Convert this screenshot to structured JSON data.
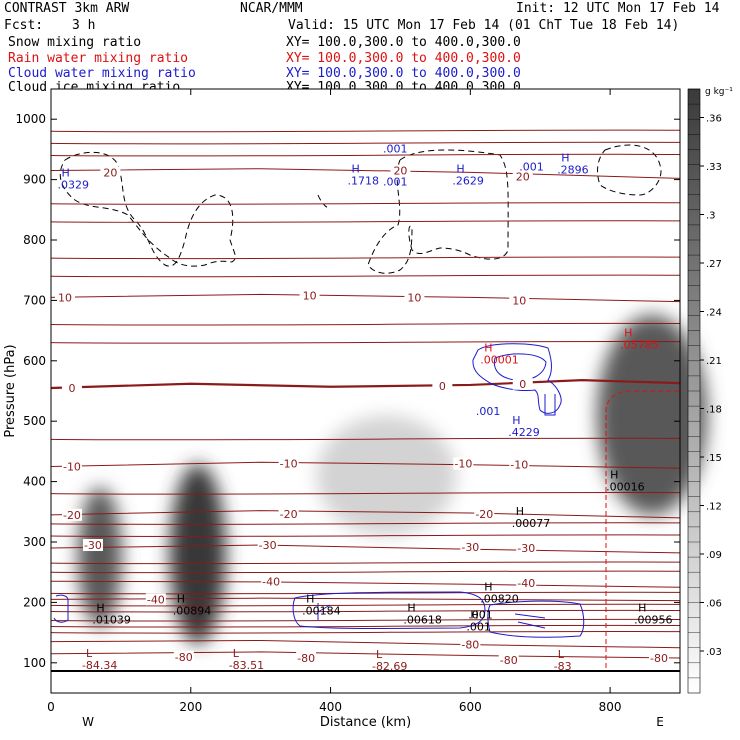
{
  "header": {
    "model": "CONTRAST   3km ARW",
    "center": "NCAR/MMM",
    "init": "Init: 12 UTC Mon 17 Feb 14",
    "fcst_label": "Fcst:",
    "fcst_value": "3 h",
    "valid": "Valid: 15 UTC Mon 17 Feb 14 (01 ChT Tue 18 Feb 14)"
  },
  "fields": [
    {
      "name": "Snow mixing ratio",
      "xy": "XY= 100.0,300.0 to 400.0,300.0",
      "color": "#000000"
    },
    {
      "name": "Rain water mixing ratio",
      "xy": "XY= 100.0,300.0 to 400.0,300.0",
      "color": "#dd1111"
    },
    {
      "name": "Cloud water mixing ratio",
      "xy": "XY= 100.0,300.0 to 400.0,300.0",
      "color": "#1c1ccc"
    },
    {
      "name": "Cloud ice mixing ratio",
      "xy": "XY= 100.0,300.0 to 400.0,300.0",
      "color": "#000000"
    }
  ],
  "colorbar": {
    "unit": "g kg⁻¹",
    "ticks": [
      ".03",
      ".06",
      ".09",
      ".12",
      ".15",
      ".18",
      ".21",
      ".24",
      ".27",
      ".3",
      ".33",
      ".36"
    ]
  },
  "chart_data": {
    "type": "contour",
    "xlabel": "Distance (km)",
    "ylabel": "Pressure (hPa)",
    "xlim": [
      0,
      900
    ],
    "ylim": [
      1050,
      50
    ],
    "xticks": [
      0,
      200,
      400,
      600,
      800
    ],
    "yticks": [
      100,
      200,
      300,
      400,
      500,
      600,
      700,
      800,
      900,
      1000
    ],
    "x_end_labels": {
      "left": "W",
      "right": "E"
    },
    "temperature_contours": [
      {
        "value": -80,
        "points": [
          [
            0,
            115
          ],
          [
            300,
            118
          ],
          [
            600,
            112
          ],
          [
            900,
            108
          ]
        ],
        "labels": [
          [
            190,
            110
          ],
          [
            365,
            108
          ],
          [
            655,
            105
          ],
          [
            870,
            108
          ]
        ]
      },
      {
        "value": -80,
        "points": [
          [
            0,
            135
          ],
          [
            300,
            137
          ],
          [
            600,
            130
          ],
          [
            900,
            125
          ]
        ],
        "labels": [
          [
            600,
            130
          ]
        ]
      },
      {
        "value": -40,
        "points": [
          [
            0,
            205
          ],
          [
            300,
            207
          ],
          [
            600,
            205
          ],
          [
            900,
            203
          ]
        ],
        "labels": [
          [
            150,
            205
          ]
        ]
      },
      {
        "value": -40,
        "points": [
          [
            0,
            235
          ],
          [
            300,
            234
          ],
          [
            600,
            230
          ],
          [
            900,
            225
          ]
        ],
        "labels": [
          [
            315,
            235
          ],
          [
            680,
            232
          ]
        ]
      },
      {
        "value": -30,
        "points": [
          [
            0,
            290
          ],
          [
            300,
            295
          ],
          [
            600,
            288
          ],
          [
            900,
            282
          ]
        ],
        "labels": [
          [
            60,
            295
          ],
          [
            310,
            295
          ],
          [
            600,
            292
          ],
          [
            680,
            290
          ]
        ]
      },
      {
        "value": -20,
        "points": [
          [
            0,
            345
          ],
          [
            300,
            352
          ],
          [
            600,
            348
          ],
          [
            900,
            340
          ]
        ],
        "labels": [
          [
            30,
            345
          ],
          [
            340,
            346
          ],
          [
            620,
            346
          ]
        ]
      },
      {
        "value": -10,
        "points": [
          [
            0,
            425
          ],
          [
            300,
            432
          ],
          [
            600,
            428
          ],
          [
            900,
            422
          ]
        ],
        "labels": [
          [
            30,
            425
          ],
          [
            340,
            430
          ],
          [
            590,
            430
          ],
          [
            670,
            428
          ]
        ]
      },
      {
        "value": 0,
        "points": [
          [
            0,
            555
          ],
          [
            200,
            562
          ],
          [
            400,
            557
          ],
          [
            600,
            560
          ],
          [
            760,
            568
          ],
          [
            900,
            563
          ]
        ],
        "labels": [
          [
            30,
            555
          ],
          [
            560,
            558
          ],
          [
            675,
            562
          ]
        ],
        "bold": true
      },
      {
        "value": 10,
        "points": [
          [
            0,
            705
          ],
          [
            300,
            710
          ],
          [
            600,
            705
          ],
          [
            900,
            698
          ]
        ],
        "labels": [
          [
            20,
            705
          ],
          [
            370,
            708
          ],
          [
            520,
            705
          ],
          [
            670,
            700
          ]
        ]
      },
      {
        "value": 20,
        "points": [
          [
            0,
            915
          ],
          [
            300,
            918
          ],
          [
            600,
            912
          ],
          [
            900,
            902
          ]
        ],
        "labels": [
          [
            85,
            912
          ],
          [
            500,
            915
          ],
          [
            675,
            905
          ]
        ]
      }
    ],
    "extrema": [
      {
        "kind": "L",
        "value": "-84.34",
        "x": 50,
        "p": 110
      },
      {
        "kind": "L",
        "value": "-83.51",
        "x": 260,
        "p": 110
      },
      {
        "kind": "L",
        "value": "-82.69",
        "x": 465,
        "p": 108
      },
      {
        "kind": "L",
        "value": "-83",
        "x": 725,
        "p": 108
      },
      {
        "kind": "H",
        "value": ".01039",
        "x": 65,
        "p": 185
      },
      {
        "kind": "H",
        "value": ".00894",
        "x": 180,
        "p": 200
      },
      {
        "kind": "H",
        "value": ".00184",
        "x": 365,
        "p": 200
      },
      {
        "kind": "H",
        "value": ".00618",
        "x": 510,
        "p": 185
      },
      {
        "kind": "H",
        "value": ".001",
        "x": 600,
        "p": 173
      },
      {
        "kind": "H",
        "value": ".00820",
        "x": 620,
        "p": 220
      },
      {
        "kind": "H",
        "value": ".00077",
        "x": 665,
        "p": 345
      },
      {
        "kind": "H",
        "value": ".00016",
        "x": 800,
        "p": 405
      },
      {
        "kind": "H",
        "value": ".00956",
        "x": 840,
        "p": 185
      },
      {
        "kind": "H",
        "value": ".4229",
        "x": 660,
        "p": 495,
        "color": "blue"
      },
      {
        "kind": "H",
        "value": ".00001",
        "x": 620,
        "p": 615,
        "color": "red"
      },
      {
        "kind": "H",
        "value": ".05785",
        "x": 820,
        "p": 640,
        "color": "red"
      },
      {
        "kind": "H",
        "value": ".0329",
        "x": 15,
        "p": 905,
        "color": "blue"
      },
      {
        "kind": "H",
        "value": ".1718",
        "x": 430,
        "p": 912,
        "color": "blue"
      },
      {
        "kind": "H",
        "value": ".2629",
        "x": 580,
        "p": 912,
        "color": "blue"
      },
      {
        "kind": "H",
        "value": ".2896",
        "x": 730,
        "p": 930,
        "color": "blue"
      }
    ],
    "snow_shading": [
      {
        "x": 70,
        "p": 275,
        "rx": 22,
        "rp": 70,
        "value": 0.3
      },
      {
        "x": 210,
        "p": 280,
        "rx": 28,
        "rp": 90,
        "value": 0.36
      },
      {
        "x": 480,
        "p": 410,
        "rx": 70,
        "rp": 60,
        "value": 0.08
      },
      {
        "x": 860,
        "p": 510,
        "rx": 55,
        "rp": 100,
        "value": 0.3
      }
    ],
    "contour_labels_other": [
      {
        "text": ".001",
        "x": 597,
        "p": 173,
        "color": "black"
      },
      {
        "text": ".001",
        "x": 608,
        "p": 510,
        "color": "blue"
      },
      {
        "text": ".001",
        "x": 475,
        "p": 890,
        "color": "blue"
      },
      {
        "text": ".001",
        "x": 475,
        "p": 945,
        "color": "blue"
      },
      {
        "text": ".001",
        "x": 670,
        "p": 915,
        "color": "blue"
      }
    ]
  }
}
